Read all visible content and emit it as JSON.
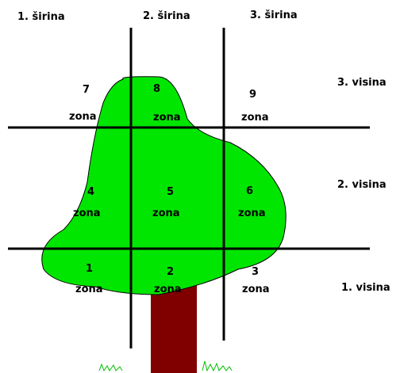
{
  "columns": [
    "1. širina",
    "2. širina",
    "3. širina"
  ],
  "rows": [
    "3. visina",
    "2. visina",
    "1. visina"
  ],
  "zones": [
    {
      "number": "7",
      "label": "zona"
    },
    {
      "number": "8",
      "label": "zona"
    },
    {
      "number": "9",
      "label": "zona"
    },
    {
      "number": "4",
      "label": "zona"
    },
    {
      "number": "5",
      "label": "zona"
    },
    {
      "number": "6",
      "label": "zona"
    },
    {
      "number": "1",
      "label": "zona"
    },
    {
      "number": "2",
      "label": "zona"
    },
    {
      "number": "3",
      "label": "zona"
    }
  ]
}
